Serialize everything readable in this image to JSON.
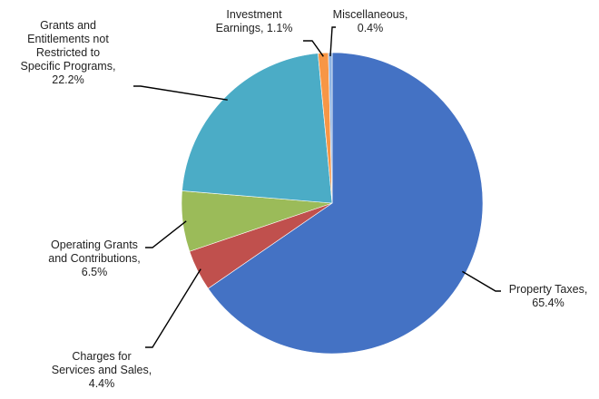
{
  "chart_data": {
    "type": "pie",
    "title": "",
    "slices": [
      {
        "key": "property",
        "label_lines": [
          "Property Taxes,",
          "65.4%"
        ],
        "name": "Property Taxes",
        "value": 65.4,
        "color": "#4472c4"
      },
      {
        "key": "charges",
        "label_lines": [
          "Charges for",
          "Services and Sales,",
          "4.4%"
        ],
        "name": "Charges for Services and Sales",
        "value": 4.4,
        "color": "#c0504d"
      },
      {
        "key": "operating",
        "label_lines": [
          "Operating Grants",
          "and Contributions,",
          "6.5%"
        ],
        "name": "Operating Grants and Contributions",
        "value": 6.5,
        "color": "#9bbb59"
      },
      {
        "key": "grants",
        "label_lines": [
          "Grants and",
          "Entitlements not",
          "Restricted to",
          "Specific Programs,",
          "22.2%"
        ],
        "name": "Grants and Entitlements not Restricted to Specific Programs",
        "value": 22.2,
        "color": "#4bacc6"
      },
      {
        "key": "investment",
        "label_lines": [
          "Investment",
          "Earnings, 1.1%"
        ],
        "name": "Investment Earnings",
        "value": 1.1,
        "color": "#f79646"
      },
      {
        "key": "misc",
        "label_lines": [
          "Miscellaneous,",
          "0.4%"
        ],
        "name": "Miscellaneous",
        "value": 0.4,
        "color": "#8eb4e3"
      }
    ]
  }
}
